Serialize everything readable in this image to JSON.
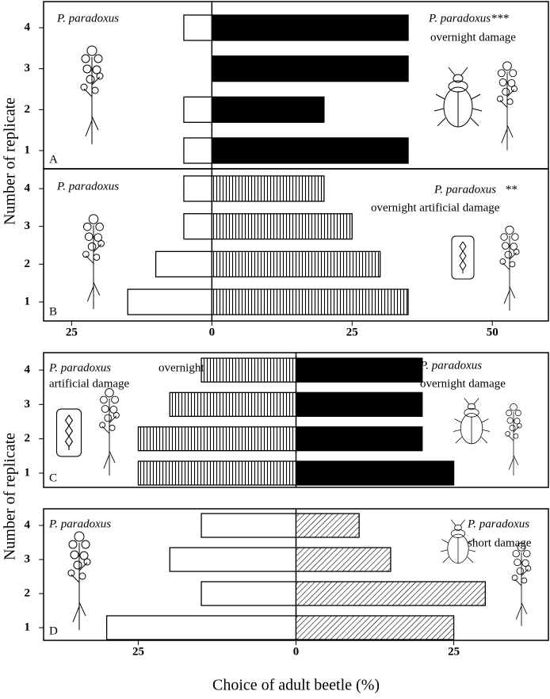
{
  "chart_data": [
    {
      "type": "bar",
      "panel_label": "A",
      "categories": [
        "1",
        "2",
        "3",
        "4"
      ],
      "left_values": [
        -5,
        -5,
        null,
        -5
      ],
      "right_values": [
        35,
        20,
        35,
        35
      ],
      "left_fill": "white",
      "right_fill": "black",
      "xlim": [
        -30,
        60
      ],
      "left_label": {
        "species": "P. paradoxus"
      },
      "right_label": {
        "species": "P. paradoxus",
        "mark": "***",
        "treatment": [
          "overnight damage"
        ]
      },
      "ylabel": "Number of replicate"
    },
    {
      "type": "bar",
      "panel_label": "B",
      "categories": [
        "1",
        "2",
        "3",
        "4"
      ],
      "left_values": [
        -15,
        -10,
        -5,
        -5
      ],
      "right_values": [
        35,
        30,
        25,
        20
      ],
      "left_fill": "white",
      "right_fill": "vertical-hatch",
      "xlim": [
        -30,
        60
      ],
      "xticks": [
        {
          "value": -25,
          "label": "25"
        },
        0,
        25,
        50
      ],
      "left_label": {
        "species": "P. paradoxus"
      },
      "right_label": {
        "species": "P. paradoxus",
        "mark": "**",
        "treatment": [
          "overnight artificial damage"
        ]
      }
    },
    {
      "type": "bar",
      "panel_label": "C",
      "categories": [
        "1",
        "2",
        "3",
        "4"
      ],
      "left_values": [
        -25,
        -25,
        -20,
        -15
      ],
      "right_values": [
        25,
        20,
        20,
        20
      ],
      "left_fill": "vertical-hatch",
      "right_fill": "black",
      "xlim": [
        -40,
        40
      ],
      "left_label": {
        "species": "P. paradoxus",
        "treatment": [
          "overnight",
          "artificial damage"
        ]
      },
      "right_label": {
        "species": "P. paradoxus",
        "treatment": [
          "overnight damage"
        ]
      },
      "ylabel": "Number of replicate"
    },
    {
      "type": "bar",
      "panel_label": "D",
      "categories": [
        "1",
        "2",
        "3",
        "4"
      ],
      "left_values": [
        -30,
        -15,
        -20,
        -15
      ],
      "right_values": [
        25,
        30,
        15,
        10
      ],
      "left_fill": "white",
      "right_fill": "diagonal-hatch",
      "xlim": [
        -40,
        40
      ],
      "xticks": [
        {
          "value": -25,
          "label": "25"
        },
        0,
        25
      ],
      "left_label": {
        "species": "P. paradoxus"
      },
      "right_label": {
        "species": "P. paradoxus",
        "treatment": [
          "short damage"
        ]
      },
      "xlabel": "Choice of adult beetle (%)"
    }
  ]
}
